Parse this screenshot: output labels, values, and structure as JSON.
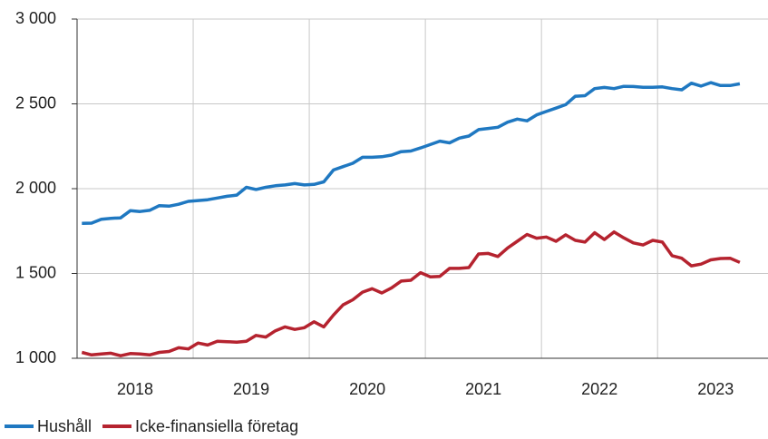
{
  "chart_data": {
    "type": "line",
    "categories": [
      null,
      null,
      null,
      null,
      null,
      null,
      "2018",
      null,
      null,
      null,
      null,
      null,
      null,
      null,
      null,
      null,
      null,
      null,
      "2019",
      null,
      null,
      null,
      null,
      null,
      null,
      null,
      null,
      null,
      null,
      null,
      "2020",
      null,
      null,
      null,
      null,
      null,
      null,
      null,
      null,
      null,
      null,
      null,
      "2021",
      null,
      null,
      null,
      null,
      null,
      null,
      null,
      null,
      null,
      null,
      null,
      "2022",
      null,
      null,
      null,
      null,
      null,
      null,
      null,
      null,
      null,
      null,
      null,
      "2023",
      null,
      null
    ],
    "series": [
      {
        "name": "Hushåll",
        "color": "#1f78c1",
        "values": [
          1795,
          1797,
          1820,
          1825,
          1828,
          1870,
          1865,
          1872,
          1900,
          1897,
          1908,
          1925,
          1930,
          1935,
          1945,
          1955,
          1962,
          2008,
          1995,
          2008,
          2017,
          2022,
          2030,
          2022,
          2025,
          2040,
          2110,
          2130,
          2150,
          2185,
          2185,
          2188,
          2198,
          2218,
          2222,
          2240,
          2260,
          2280,
          2270,
          2298,
          2310,
          2348,
          2355,
          2362,
          2392,
          2410,
          2400,
          2435,
          2455,
          2475,
          2495,
          2545,
          2548,
          2590,
          2597,
          2590,
          2603,
          2602,
          2598,
          2598,
          2600,
          2590,
          2583,
          2622,
          2605,
          2625,
          2608,
          2608,
          2618
        ]
      },
      {
        "name": "Icke-finansiella företag",
        "color": "#b5232f",
        "values": [
          1035,
          1020,
          1025,
          1030,
          1015,
          1028,
          1025,
          1020,
          1035,
          1040,
          1062,
          1055,
          1090,
          1078,
          1100,
          1098,
          1095,
          1100,
          1135,
          1125,
          1162,
          1185,
          1170,
          1180,
          1215,
          1185,
          1255,
          1315,
          1345,
          1390,
          1410,
          1385,
          1415,
          1455,
          1460,
          1505,
          1480,
          1483,
          1530,
          1530,
          1535,
          1615,
          1618,
          1600,
          1650,
          1690,
          1730,
          1708,
          1715,
          1690,
          1728,
          1695,
          1685,
          1740,
          1700,
          1745,
          1710,
          1680,
          1668,
          1695,
          1685,
          1605,
          1590,
          1545,
          1555,
          1580,
          1588,
          1590,
          1565
        ]
      }
    ],
    "ylim": [
      1000,
      3000
    ],
    "yticks": [
      {
        "value": 1000,
        "label": "1 000"
      },
      {
        "value": 1500,
        "label": "1 500"
      },
      {
        "value": 2000,
        "label": "2 000"
      },
      {
        "value": 2500,
        "label": "2 500"
      },
      {
        "value": 3000,
        "label": "3 000"
      }
    ],
    "grid": true,
    "legend": "bottom"
  }
}
